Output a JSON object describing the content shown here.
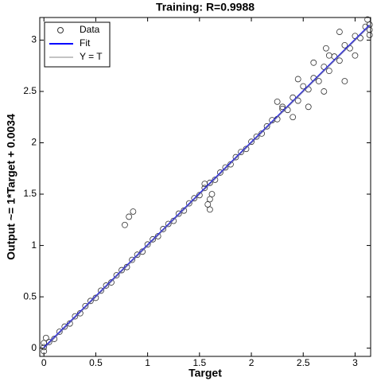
{
  "chart_data": {
    "type": "scatter",
    "title": "Training: R=0.9988",
    "x_label": "Target",
    "y_label": "Output ~= 1*Target + 0.0034",
    "xlim": [
      -0.04,
      3.15
    ],
    "ylim": [
      -0.08,
      3.22
    ],
    "xticks": [
      0,
      0.5,
      1,
      1.5,
      2,
      2.5,
      3
    ],
    "yticks": [
      0,
      0.5,
      1,
      1.5,
      2,
      2.5,
      3
    ],
    "legend": "upper left",
    "series": [
      {
        "name": "Data",
        "type": "scatter",
        "color": "#333333",
        "x": [
          0,
          0.05,
          0.1,
          0.15,
          0.2,
          0.25,
          0.3,
          0.35,
          0.4,
          0.45,
          0.5,
          0.55,
          0.6,
          0.65,
          0.7,
          0.75,
          0.8,
          0.85,
          0.9,
          0.95,
          1,
          1.05,
          1.1,
          1.15,
          1.2,
          1.25,
          1.3,
          1.35,
          1.4,
          1.45,
          1.5,
          1.55,
          1.6,
          1.65,
          1.7,
          1.75,
          1.8,
          1.85,
          1.9,
          1.95,
          2,
          2.05,
          2.1,
          2.15,
          2.2,
          2.25,
          2.3,
          2.35,
          2.4,
          2.45,
          2.5,
          2.55,
          2.6,
          2.65,
          2.7,
          2.75,
          2.8,
          2.85,
          2.9,
          2.95,
          3,
          3.05,
          3.1,
          0,
          0,
          0.02,
          0.78,
          0.82,
          0.86,
          1.58,
          1.6,
          1.6,
          1.62,
          1.55,
          2.25,
          2.3,
          2.4,
          2.45,
          2.55,
          2.6,
          2.7,
          2.72,
          2.75,
          2.85,
          2.9,
          3.0,
          3.12,
          3.14,
          3.14,
          3.14
        ],
        "values": [
          0.01,
          0.06,
          0.09,
          0.16,
          0.21,
          0.24,
          0.31,
          0.34,
          0.41,
          0.46,
          0.49,
          0.56,
          0.61,
          0.64,
          0.71,
          0.76,
          0.79,
          0.86,
          0.91,
          0.94,
          1.01,
          1.06,
          1.09,
          1.16,
          1.21,
          1.24,
          1.31,
          1.34,
          1.41,
          1.46,
          1.49,
          1.56,
          1.61,
          1.64,
          1.71,
          1.76,
          1.79,
          1.86,
          1.91,
          1.94,
          2.01,
          2.06,
          2.09,
          2.16,
          2.22,
          2.23,
          2.33,
          2.32,
          2.44,
          2.41,
          2.55,
          2.52,
          2.63,
          2.6,
          2.74,
          2.7,
          2.84,
          2.8,
          2.95,
          2.92,
          3.04,
          3.02,
          3.13,
          -0.03,
          0.05,
          0.1,
          1.2,
          1.28,
          1.33,
          1.4,
          1.45,
          1.35,
          1.5,
          1.6,
          2.4,
          2.35,
          2.25,
          2.62,
          2.35,
          2.78,
          2.5,
          2.92,
          2.85,
          3.08,
          2.6,
          2.85,
          3.2,
          3.15,
          3.1,
          3.05
        ]
      },
      {
        "name": "Fit",
        "type": "line",
        "color": "#0000ff",
        "x": [
          0,
          3.14
        ],
        "values": [
          0.0034,
          3.1434
        ]
      },
      {
        "name": "Y = T",
        "type": "line",
        "color": "#888888",
        "x": [
          0,
          3.14
        ],
        "values": [
          0,
          3.14
        ]
      }
    ]
  }
}
